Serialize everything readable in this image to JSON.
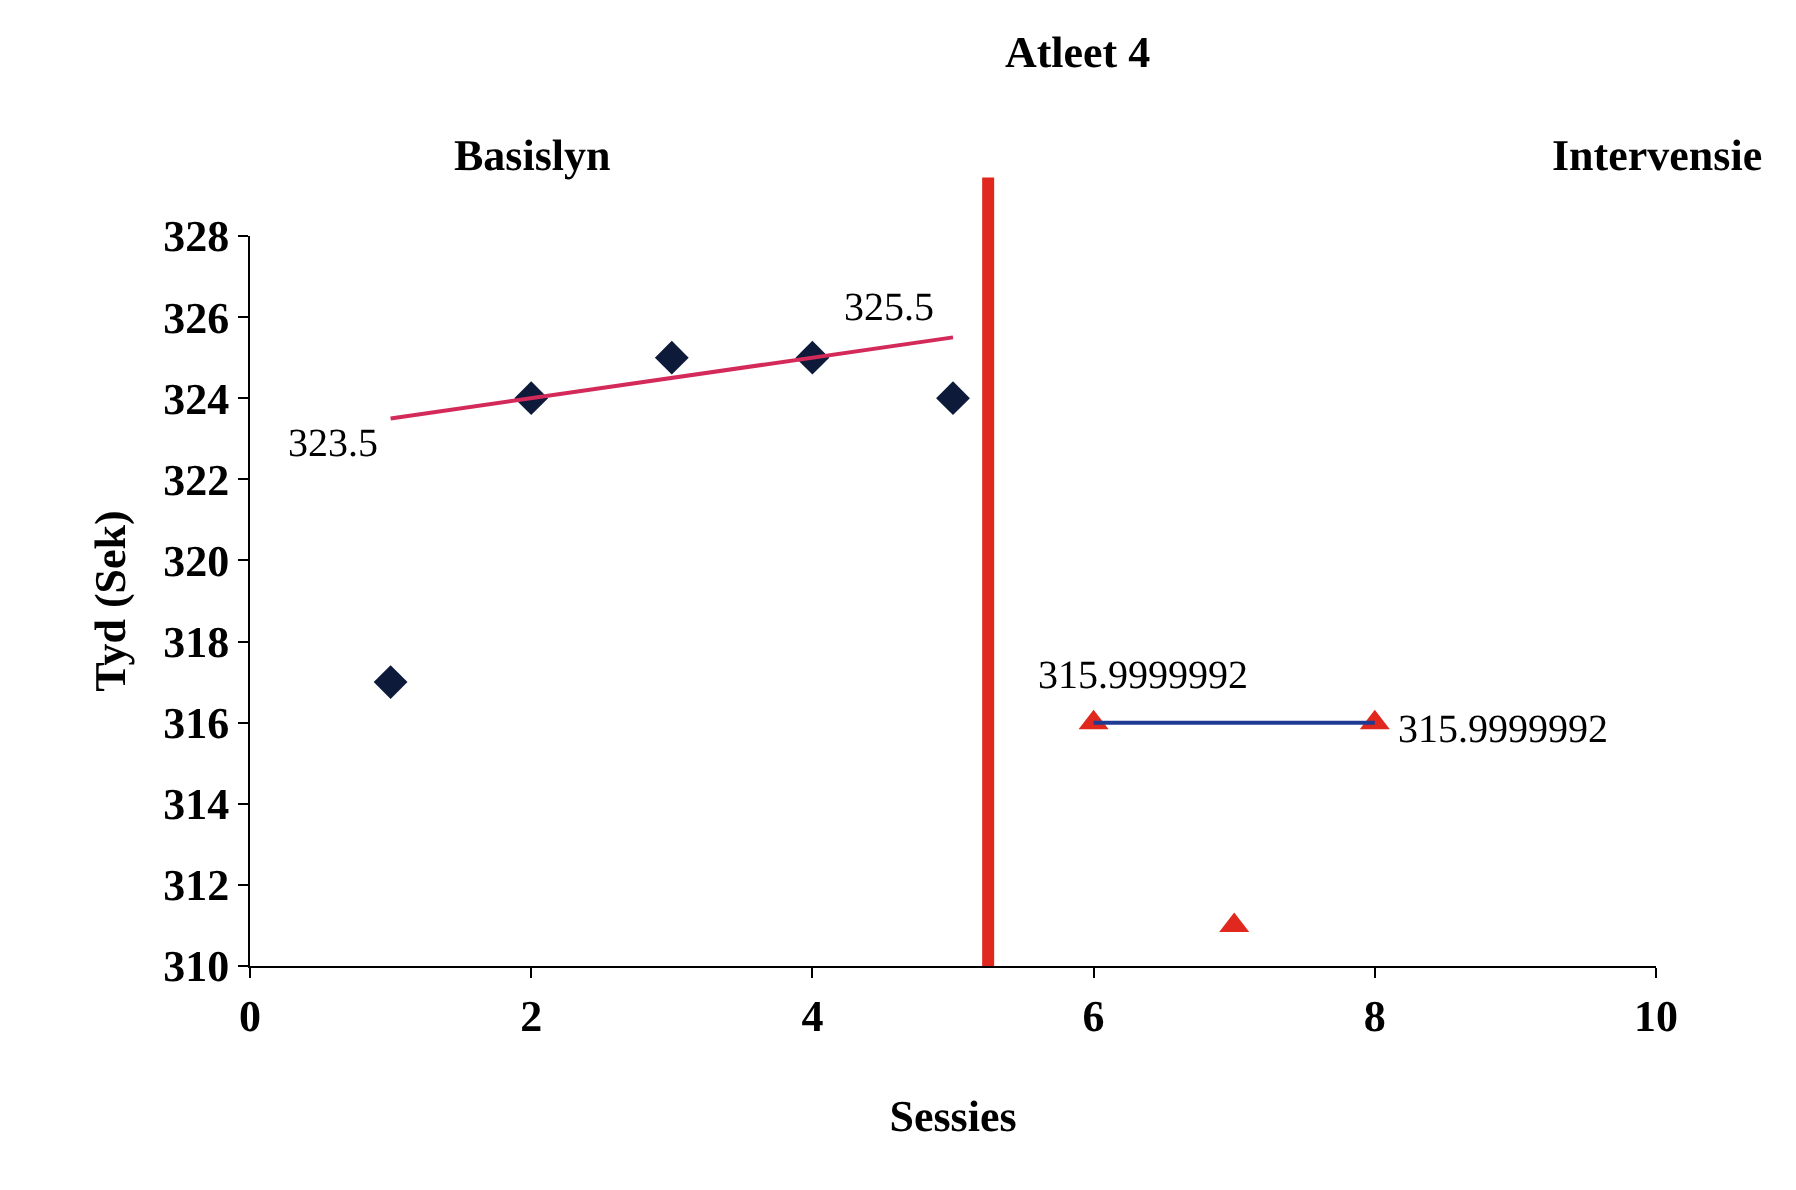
{
  "chart_data": {
    "type": "scatter",
    "title": "Atleet 4",
    "xlabel": "Sessies",
    "ylabel": "Tyd (Sek)",
    "xlim": [
      0,
      10
    ],
    "xticks": [
      0,
      2,
      4,
      6,
      8,
      10
    ],
    "ylim": [
      310,
      328
    ],
    "yticks": [
      310,
      312,
      314,
      316,
      318,
      320,
      322,
      324,
      326,
      328
    ],
    "series": [
      {
        "marker": "diamond",
        "color": "#0d1a3a",
        "x": [
          1,
          2,
          3,
          4,
          5
        ],
        "values": [
          317,
          324,
          325,
          325,
          324
        ]
      },
      {
        "type": "line",
        "marker": "none",
        "color": "#d42a5a",
        "x": [
          1,
          5
        ],
        "values": [
          323.5,
          325.5
        ]
      },
      {
        "marker": "triangle",
        "color": "#e0281e",
        "x": [
          6,
          7,
          8
        ],
        "values": [
          316,
          311,
          316
        ]
      },
      {
        "type": "line",
        "marker": "none",
        "color": "#1f3a93",
        "x": [
          6,
          8
        ],
        "values": [
          316,
          316
        ]
      }
    ],
    "ref_lines": [
      {
        "axis": "x",
        "value": 5.25,
        "color": "#e0281e"
      }
    ],
    "annotations": [
      "Basislyn",
      "Intervensie",
      {
        "text": "323.5",
        "x": 1,
        "y": 323.5
      },
      {
        "text": "325.5",
        "x": 5,
        "y": 325.5
      },
      {
        "text": "315.9999992",
        "x": 6,
        "y": 316
      },
      {
        "text": "315.9999992",
        "x": 8,
        "y": 316
      }
    ]
  }
}
